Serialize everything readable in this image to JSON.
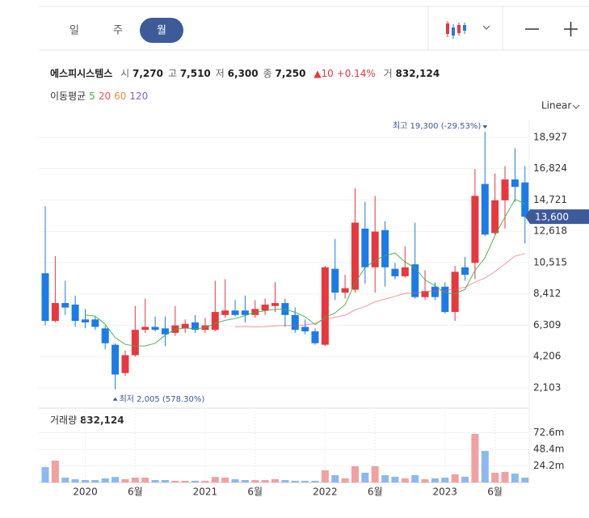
{
  "tabs": {
    "items": [
      "일",
      "주",
      "월"
    ],
    "selected": 2
  },
  "info": {
    "name": "에스피시스템스",
    "fields": [
      {
        "label": "시",
        "value": "7,270"
      },
      {
        "label": "고",
        "value": "7,510"
      },
      {
        "label": "저",
        "value": "6,300"
      },
      {
        "label": "종",
        "value": "7,250"
      }
    ],
    "change": "10",
    "change_pct": "+0.14%",
    "volume_label": "거",
    "volume_value": "832,124"
  },
  "chart_data": {
    "type": "candlestick",
    "scale": "Linear",
    "moving_average": {
      "label": "이동평균",
      "periods": [
        5,
        20,
        60,
        120
      ],
      "colors": [
        "#3cb043",
        "#f0505a",
        "#f08c3c",
        "#8a5cd0"
      ]
    },
    "up_color": "#e8383d",
    "down_color": "#1b7ce8",
    "up_volume_color": "#f2a0a0",
    "down_volume_color": "#8cb9ef",
    "categories": [
      null,
      null,
      null,
      null,
      "2020",
      null,
      null,
      null,
      null,
      "6월",
      null,
      null,
      null,
      null,
      null,
      null,
      "2021",
      null,
      null,
      null,
      null,
      "6월",
      null,
      null,
      null,
      null,
      null,
      null,
      "2022",
      null,
      null,
      null,
      null,
      "6월",
      null,
      null,
      null,
      null,
      null,
      null,
      "2023",
      null,
      null,
      null,
      null,
      "6월",
      null,
      null,
      null
    ],
    "open": [
      9800,
      6600,
      7800,
      7700,
      6700,
      6700,
      6100,
      5000,
      3100,
      4300,
      6000,
      6200,
      6100,
      5800,
      6100,
      6500,
      6000,
      6000,
      7000,
      7300,
      7300,
      7000,
      7300,
      7600,
      7800,
      7000,
      6200,
      5900,
      5000,
      10100,
      8500,
      8700,
      12800,
      10200,
      12700,
      10100,
      9600,
      10400,
      8200,
      8900,
      8900,
      7200,
      10200,
      10500,
      15800,
      12500,
      14700,
      16100,
      15900
    ],
    "high": [
      14300,
      10950,
      9300,
      8300,
      7400,
      6900,
      6300,
      5100,
      4600,
      7600,
      8100,
      6900,
      6900,
      7600,
      6700,
      7000,
      6800,
      9300,
      9400,
      8000,
      8300,
      8000,
      8100,
      9200,
      8100,
      7500,
      6700,
      6100,
      10300,
      12100,
      9700,
      15500,
      14600,
      15000,
      13300,
      10500,
      11600,
      13200,
      10000,
      9200,
      9200,
      10300,
      10900,
      16800,
      19300,
      16500,
      17000,
      18200,
      17000
    ],
    "low": [
      6300,
      6500,
      7000,
      6200,
      6100,
      6000,
      4700,
      2005,
      2900,
      4200,
      5800,
      5900,
      4900,
      5600,
      5800,
      5800,
      5800,
      5900,
      6800,
      6900,
      6500,
      6800,
      7000,
      7200,
      6200,
      5800,
      5700,
      5000,
      4900,
      8000,
      8100,
      8500,
      9100,
      8500,
      8900,
      9400,
      9500,
      8100,
      8000,
      8000,
      7100,
      6600,
      9300,
      9400,
      12300,
      12400,
      12800,
      14600,
      11800
    ],
    "close": [
      6600,
      7800,
      7500,
      6600,
      6500,
      6200,
      5100,
      3000,
      4300,
      6000,
      6200,
      6000,
      5700,
      6300,
      6400,
      6000,
      6300,
      7200,
      7300,
      7000,
      7000,
      7400,
      7700,
      7800,
      7000,
      6000,
      5900,
      5100,
      10200,
      8500,
      8800,
      13200,
      10200,
      12600,
      10200,
      9600,
      10200,
      8200,
      8600,
      8200,
      7200,
      9900,
      9700,
      15000,
      12400,
      14700,
      16100,
      15600,
      13600
    ],
    "volume": [
      22.4,
      31.9,
      7,
      4.7,
      3.5,
      3.5,
      6,
      8,
      4.7,
      7,
      7,
      3.5,
      3.5,
      2.4,
      2.4,
      2.4,
      2.4,
      8,
      7,
      4.7,
      3.5,
      3.5,
      3.5,
      4.7,
      3.5,
      2.4,
      2.4,
      2.4,
      17.7,
      10.6,
      5.9,
      23.6,
      14.2,
      23.6,
      10.6,
      8.3,
      5.9,
      10.6,
      4.7,
      5.9,
      7,
      11.8,
      8.3,
      70.8,
      46,
      14.2,
      15.3,
      13,
      7
    ],
    "ylim": [
      1180,
      20012
    ],
    "yticks": [
      {
        "value": 18927,
        "label": "18,927"
      },
      {
        "value": 16824,
        "label": "16,824"
      },
      {
        "value": 14721,
        "label": "14,721"
      },
      {
        "value": 12618,
        "label": "12,618"
      },
      {
        "value": 10515,
        "label": "10,515"
      },
      {
        "value": 8412,
        "label": "8,412"
      },
      {
        "value": 6309,
        "label": "6,309"
      },
      {
        "value": 4206,
        "label": "4,206"
      },
      {
        "value": 2103,
        "label": "2,103"
      }
    ],
    "current_price": {
      "value": 13600,
      "label": "13,600"
    },
    "max_annotation": "최고 19,300 (-29.53%)",
    "min_annotation": "최저 2,005 (578.30%)",
    "volume_title": "거래량",
    "volume_value": "832,124",
    "y2lim": [
      0,
      105
    ],
    "y2ticks": [
      {
        "value": 72.6,
        "label": "72.6m"
      },
      {
        "value": 48.4,
        "label": "48.4m"
      },
      {
        "value": 24.2,
        "label": "24.2m"
      }
    ]
  }
}
